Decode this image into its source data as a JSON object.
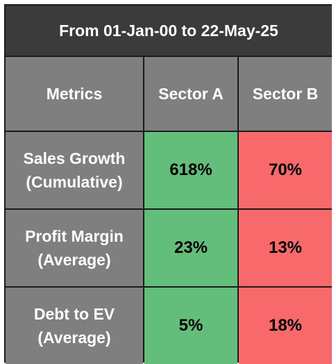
{
  "table": {
    "title": "From 01-Jan-00 to 22-May-25",
    "header": [
      "Metrics",
      "Sector A",
      "Sector B"
    ],
    "rows": [
      [
        "Sales Growth (Cumulative)",
        "618%",
        "70%"
      ],
      [
        "Profit Margin (Average)",
        "23%",
        "13%"
      ],
      [
        "Debt to EV (Average)",
        "5%",
        "18%"
      ]
    ]
  }
}
